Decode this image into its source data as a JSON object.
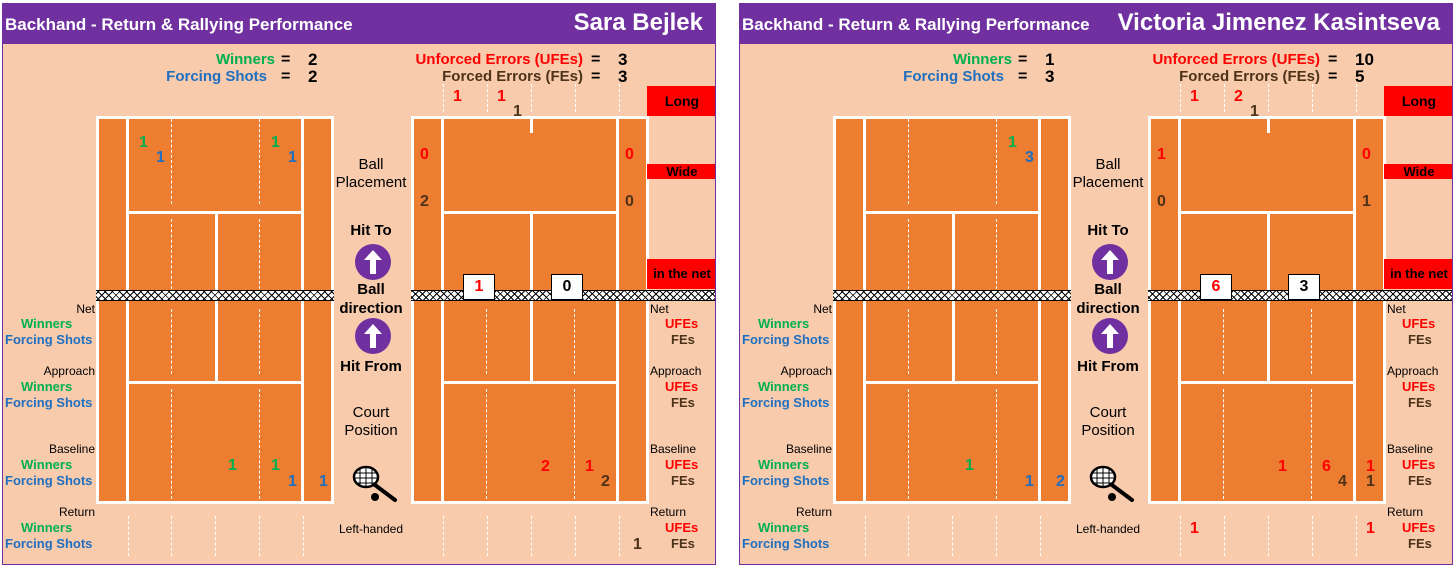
{
  "panels": [
    {
      "title": "Backhand - Return & Rallying Performance",
      "player": "Sara Bejlek",
      "winners_label": "Winners",
      "winners_value": "2",
      "forcing_label": "Forcing Shots",
      "forcing_value": "2",
      "ufe_label": "Unforced Errors (UFEs)",
      "ufe_value": "3",
      "fe_label": "Forced Errors (FEs)",
      "fe_value": "3",
      "eq": "=",
      "left_court": {
        "top_green_1": "1",
        "top_blue_1": "1",
        "top_green_2": "1",
        "top_blue_2": "1",
        "base_green_1": "1",
        "base_green_2": "1",
        "base_blue_1": "1",
        "base_blue_2": "1"
      },
      "right_court": {
        "top_red_1": "1",
        "top_red_2": "1",
        "top_brown": "1",
        "wide_left_red": "0",
        "wide_left_brown": "2",
        "wide_right_red": "0",
        "wide_right_brown": "0",
        "net_left": "1",
        "net_right": "0",
        "base_red_1": "2",
        "base_red_2": "1",
        "base_brown": "2",
        "return_brown": "1",
        "return_red_1": "",
        "return_red_2": ""
      },
      "mid": {
        "ball_placement": [
          "Ball",
          "Placement"
        ],
        "hit_to": "Hit To",
        "ball_direction": [
          "Ball",
          "direction"
        ],
        "hit_from": "Hit From",
        "court_position": [
          "Court",
          "Position"
        ],
        "handed": "Left-handed"
      },
      "red_bars": {
        "long": "Long",
        "wide": "Wide",
        "net": "in the net"
      },
      "sections_left": {
        "net": "Net",
        "approach": "Approach",
        "baseline": "Baseline",
        "return": "Return",
        "winners": "Winners",
        "forcing": "Forcing Shots"
      },
      "sections_right": {
        "net": "Net",
        "approach": "Approach",
        "baseline": "Baseline",
        "return": "Return",
        "ufes": "UFEs",
        "fes": "FEs"
      },
      "net_text": "xxxxxxxxxxxxxxxxxxxxxxxxxxxxxxxxxxxxxxxx"
    },
    {
      "title": "Backhand - Return & Rallying Performance",
      "player": "Victoria Jimenez Kasintseva",
      "winners_label": "Winners",
      "winners_value": "1",
      "forcing_label": "Forcing Shots",
      "forcing_value": "3",
      "ufe_label": "Unforced Errors (UFEs)",
      "ufe_value": "10",
      "fe_label": "Forced Errors (FEs)",
      "fe_value": "5",
      "eq": "=",
      "left_court": {
        "top_green_1": "",
        "top_blue_1": "",
        "top_green_2": "1",
        "top_blue_2": "3",
        "base_green_1": "1",
        "base_green_2": "",
        "base_blue_1": "1",
        "base_blue_2": "2"
      },
      "right_court": {
        "top_red_1": "1",
        "top_red_2": "2",
        "top_brown": "1",
        "wide_left_red": "1",
        "wide_left_brown": "0",
        "wide_right_red": "0",
        "wide_right_brown": "1",
        "net_left": "6",
        "net_right": "3",
        "base_red_1": "1",
        "base_red_2": "6",
        "base_brown": "4",
        "base_red_3": "1",
        "base_brown_2": "1",
        "return_brown": "",
        "return_red_1": "1",
        "return_red_2": "1"
      },
      "mid": {
        "ball_placement": [
          "Ball",
          "Placement"
        ],
        "hit_to": "Hit To",
        "ball_direction": [
          "Ball",
          "direction"
        ],
        "hit_from": "Hit From",
        "court_position": [
          "Court",
          "Position"
        ],
        "handed": "Left-handed"
      },
      "red_bars": {
        "long": "Long",
        "wide": "Wide",
        "net": "in the net"
      },
      "sections_left": {
        "net": "Net",
        "approach": "Approach",
        "baseline": "Baseline",
        "return": "Return",
        "winners": "Winners",
        "forcing": "Forcing Shots"
      },
      "sections_right": {
        "net": "Net",
        "approach": "Approach",
        "baseline": "Baseline",
        "return": "Return",
        "ufes": "UFEs",
        "fes": "FEs"
      },
      "net_text": "xxxxxxxxxxxxxxxxxxxxxxxxxxxxxxxxxxxxxxxx"
    }
  ],
  "colors": {
    "header": "#7030a0",
    "panel_bg": "#f8cbad",
    "court": "#ed7d31",
    "winners": "#00b050",
    "forcing": "#1f6fc0",
    "ufe": "#ff0000",
    "fe": "#4d3319"
  },
  "icons": {
    "arrow": "up-arrow-circle-icon",
    "racket": "tennis-racket-icon"
  }
}
